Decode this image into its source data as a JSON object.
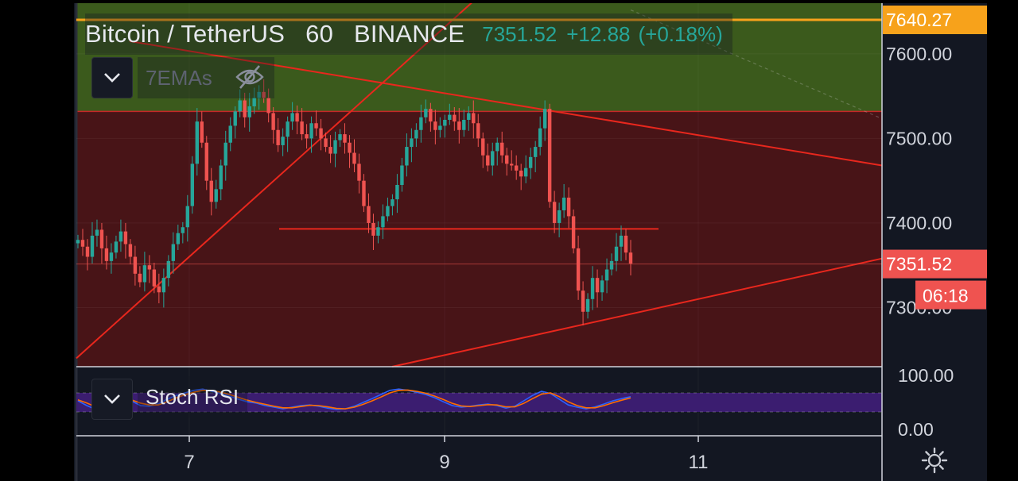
{
  "header": {
    "symbol": "Bitcoin / TetherUS",
    "interval": "60",
    "exchange": "BINANCE",
    "last_price": "7351.52",
    "change": "+12.88",
    "change_pct": "(+0.18%)"
  },
  "indicators": {
    "ema_label": "7EMAs",
    "rsi_label": "Stoch RSI"
  },
  "price_axis": {
    "ticks": [
      "7600.00",
      "7500.00",
      "7400.00",
      "7300.00"
    ],
    "marker_alert": "7640.27",
    "marker_last": "7351.52",
    "countdown": "06:18"
  },
  "rsi_axis": {
    "ticks": [
      "100.00",
      "0.00"
    ]
  },
  "time_axis": {
    "ticks": [
      "7",
      "9",
      "11"
    ]
  },
  "colors": {
    "bg": "#131722",
    "up": "#26a69a",
    "down": "#ef5350",
    "green_zone": "#3b5a1c",
    "red_zone": "#481417",
    "trendline": "#e8271d",
    "alert": "#f7a21b",
    "rsi_band": "#3b1d70",
    "k_line": "#2962ff",
    "d_line": "#ff6d00"
  },
  "icons": [
    "chevron-down-icon",
    "eye-off-icon",
    "gear-icon"
  ],
  "chart_data": [
    {
      "type": "candlestick",
      "title": "Bitcoin / TetherUS 60 BINANCE",
      "x_ticks": [
        "7",
        "9",
        "11"
      ],
      "ylim": [
        7230,
        7660
      ],
      "y_ticks": [
        7300,
        7400,
        7500,
        7600
      ],
      "zones": [
        {
          "from": 7532,
          "to": 7660,
          "color": "green"
        },
        {
          "from": 7230,
          "to": 7532,
          "color": "red"
        }
      ],
      "alert_line": 7640.27,
      "last_price": 7351.52,
      "horizontal_line": 7393,
      "close": [
        7380,
        7372,
        7360,
        7385,
        7392,
        7370,
        7355,
        7365,
        7378,
        7390,
        7375,
        7360,
        7340,
        7330,
        7350,
        7345,
        7325,
        7318,
        7335,
        7355,
        7375,
        7388,
        7395,
        7420,
        7470,
        7520,
        7495,
        7450,
        7425,
        7440,
        7468,
        7495,
        7515,
        7532,
        7545,
        7525,
        7538,
        7548,
        7555,
        7548,
        7530,
        7510,
        7492,
        7502,
        7520,
        7530,
        7520,
        7505,
        7500,
        7518,
        7512,
        7500,
        7490,
        7482,
        7498,
        7505,
        7495,
        7483,
        7470,
        7450,
        7420,
        7400,
        7385,
        7395,
        7408,
        7420,
        7428,
        7445,
        7468,
        7490,
        7500,
        7510,
        7525,
        7535,
        7520,
        7510,
        7515,
        7522,
        7528,
        7520,
        7510,
        7522,
        7530,
        7518,
        7500,
        7480,
        7468,
        7485,
        7495,
        7480,
        7470,
        7468,
        7462,
        7455,
        7465,
        7478,
        7490,
        7512,
        7535,
        7425,
        7400,
        7415,
        7430,
        7408,
        7370,
        7320,
        7295,
        7310,
        7335,
        7318,
        7332,
        7345,
        7355,
        7372,
        7385,
        7365,
        7352
      ],
      "rsi_k": [
        55,
        40,
        28,
        35,
        50,
        65,
        55,
        40,
        38,
        45,
        60,
        72,
        80,
        88,
        92,
        85,
        78,
        70,
        60,
        52,
        48,
        40,
        35,
        30,
        35,
        40,
        42,
        38,
        32,
        28,
        30,
        38,
        50,
        62,
        75,
        88,
        92,
        88,
        82,
        75,
        65,
        52,
        40,
        35,
        38,
        42,
        45,
        40,
        32,
        38,
        55,
        72,
        85,
        78,
        60,
        42,
        35,
        30,
        36,
        45,
        55,
        62,
        68
      ],
      "rsi_d": [
        58,
        48,
        36,
        33,
        42,
        56,
        58,
        48,
        42,
        42,
        52,
        64,
        74,
        82,
        88,
        88,
        82,
        75,
        66,
        57,
        50,
        44,
        38,
        33,
        33,
        37,
        41,
        40,
        36,
        31,
        30,
        35,
        44,
        55,
        67,
        80,
        88,
        89,
        85,
        79,
        70,
        59,
        47,
        39,
        37,
        40,
        43,
        42,
        36,
        36,
        47,
        62,
        76,
        80,
        68,
        52,
        40,
        33,
        33,
        40,
        49,
        57,
        64
      ]
    }
  ]
}
